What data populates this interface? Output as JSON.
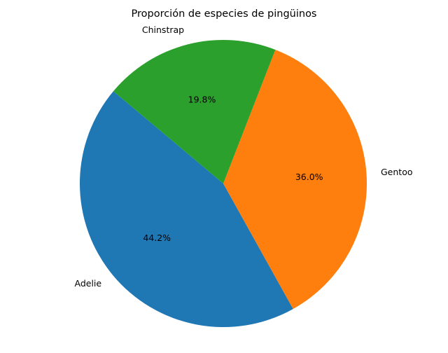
{
  "chart_data": {
    "type": "pie",
    "title": "Proporción de especies de pingüinos",
    "slices": [
      {
        "label": "Adelie",
        "value": 44.2,
        "pct_label": "44.2%",
        "color": "#1f77b4"
      },
      {
        "label": "Gentoo",
        "value": 36.0,
        "pct_label": "36.0%",
        "color": "#ff7f0e"
      },
      {
        "label": "Chinstrap",
        "value": 19.8,
        "pct_label": "19.8%",
        "color": "#2ca02c"
      }
    ],
    "start_angle_deg": 140,
    "direction": "counterclockwise",
    "legend": "none"
  }
}
